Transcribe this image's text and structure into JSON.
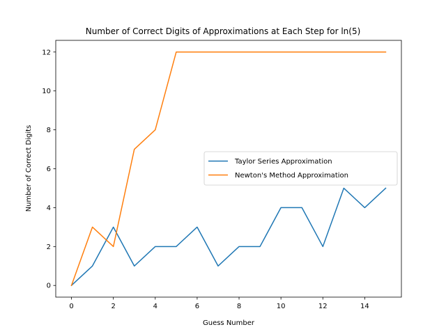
{
  "chart_data": {
    "type": "line",
    "title": "Number of Correct Digits of Approximations at Each Step for ln(5)",
    "xlabel": "Guess Number",
    "ylabel": "Number of Correct Digits",
    "xlim": [
      -0.75,
      15.75
    ],
    "ylim": [
      -0.6,
      12.6
    ],
    "xticks": [
      0,
      2,
      4,
      6,
      8,
      10,
      12,
      14
    ],
    "yticks": [
      0,
      2,
      4,
      6,
      8,
      10,
      12
    ],
    "grid": false,
    "legend_position": "center-right",
    "x": [
      0,
      1,
      2,
      3,
      4,
      5,
      6,
      7,
      8,
      9,
      10,
      11,
      12,
      13,
      14,
      15
    ],
    "series": [
      {
        "name": "Taylor Series Approximation",
        "color": "#1f77b4",
        "values": [
          0,
          1,
          3,
          1,
          2,
          2,
          3,
          1,
          2,
          2,
          4,
          4,
          2,
          5,
          4,
          5
        ]
      },
      {
        "name": "Newton's Method Approximation",
        "color": "#ff7f0e",
        "values": [
          0,
          3,
          2,
          7,
          8,
          12,
          12,
          12,
          12,
          12,
          12,
          12,
          12,
          12,
          12,
          12
        ]
      }
    ]
  }
}
